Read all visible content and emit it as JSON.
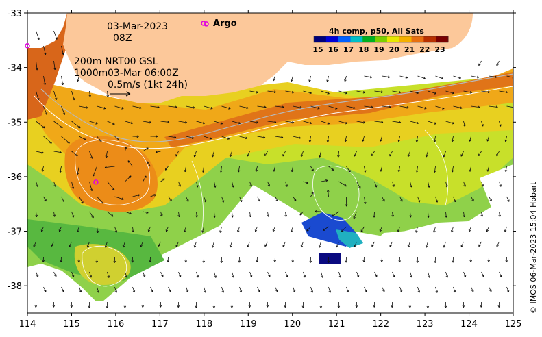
{
  "map": {
    "x_ticks": [
      "114",
      "115",
      "116",
      "117",
      "118",
      "119",
      "120",
      "121",
      "122",
      "123",
      "124",
      "125"
    ],
    "y_ticks": [
      "-33",
      "-34",
      "-35",
      "-36",
      "-37",
      "-38"
    ],
    "x_range": [
      114,
      125
    ],
    "y_range": [
      -38.5,
      -33
    ]
  },
  "annotations": {
    "date": "03-Mar-2023",
    "time": "08Z",
    "depth_200": "200m",
    "nrt": "NRT00 GSL",
    "depth_1000": "1000m",
    "nrt_time": "03-Mar 06:00Z",
    "scale_note": "0.5m/s (1kt 24h)"
  },
  "legend": {
    "argo_label": "Argo",
    "argo_color": "#e000e0",
    "land_color": "#fcc89a"
  },
  "colorbar": {
    "title": "4h comp, p50, All Sats",
    "labels": [
      "15",
      "16",
      "17",
      "18",
      "19",
      "20",
      "21",
      "22",
      "23"
    ],
    "colors": [
      "#00007a",
      "#0000d8",
      "#0060ff",
      "#00c0c8",
      "#00b020",
      "#7cd000",
      "#e8e800",
      "#f5b000",
      "#e87010",
      "#b83000",
      "#7a0000"
    ]
  },
  "credit": "© IMOS 06-Mar-2023 15:04 Hobart",
  "argo_floats": [
    {
      "lon": 118.05,
      "lat": -33.2
    },
    {
      "lon": 115.55,
      "lat": -36.1
    },
    {
      "lon": 114.0,
      "lat": -33.6
    }
  ]
}
